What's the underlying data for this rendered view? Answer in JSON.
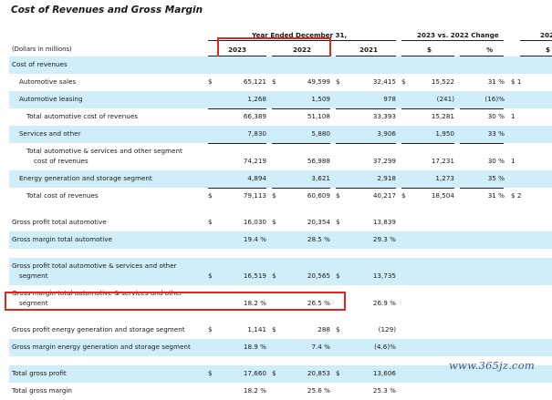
{
  "title": "Cost of Revenues and Gross Margin",
  "header": {
    "period_label": "Year Ended December 31,",
    "change_label": "2023 vs. 2022 Change",
    "change_label_next": "202",
    "units_label": "(Dollars in millions)",
    "col_2023": "2023",
    "col_2022": "2022",
    "col_2021": "2021",
    "col_dollar": "$",
    "col_pct": "%",
    "col_next": "$"
  },
  "rows": [
    {
      "label": "Cost of revenues",
      "lines": 1,
      "shade": true,
      "topline": false,
      "values": [
        "",
        "",
        "",
        "",
        ""
      ],
      "dollar": [
        "",
        "",
        "",
        "",
        ""
      ],
      "next": ""
    },
    {
      "label": "Automotive sales",
      "indent": 1,
      "lines": 1,
      "shade": false,
      "topline": false,
      "values": [
        "65,121",
        "49,599",
        "32,415",
        "15,522",
        "31 %"
      ],
      "dollar": [
        "$",
        "$",
        "$",
        "$",
        ""
      ],
      "next": "$   1"
    },
    {
      "label": "Automotive leasing",
      "indent": 1,
      "lines": 1,
      "shade": true,
      "topline": false,
      "values": [
        "1,268",
        "1,509",
        "978",
        "(241)",
        "(16)%"
      ],
      "dollar": [
        "",
        "",
        "",
        "",
        ""
      ],
      "next": ""
    },
    {
      "label": "Total automotive cost of revenues",
      "indent": 2,
      "lines": 1,
      "shade": false,
      "topline": true,
      "values": [
        "66,389",
        "51,108",
        "33,393",
        "15,281",
        "30 %"
      ],
      "dollar": [
        "",
        "",
        "",
        "",
        ""
      ],
      "next": "1"
    },
    {
      "label": "Services and other",
      "indent": 1,
      "lines": 1,
      "shade": true,
      "topline": false,
      "values": [
        "7,830",
        "5,880",
        "3,906",
        "1,950",
        "33 %"
      ],
      "dollar": [
        "",
        "",
        "",
        "",
        ""
      ],
      "next": ""
    },
    {
      "label": "Total automotive & services and other segment",
      "label2": "cost of revenues",
      "indent": 2,
      "lines": 2,
      "shade": false,
      "topline": true,
      "values": [
        "74,219",
        "56,988",
        "37,299",
        "17,231",
        "30 %"
      ],
      "dollar": [
        "",
        "",
        "",
        "",
        ""
      ],
      "next": "1"
    },
    {
      "label": "Energy generation and storage segment",
      "indent": 1,
      "lines": 1,
      "shade": true,
      "topline": false,
      "values": [
        "4,894",
        "3,621",
        "2,918",
        "1,273",
        "35 %"
      ],
      "dollar": [
        "",
        "",
        "",
        "",
        ""
      ],
      "next": ""
    },
    {
      "label": "Total cost of revenues",
      "indent": 2,
      "lines": 1,
      "shade": false,
      "topline": true,
      "values": [
        "79,113",
        "60,609",
        "40,217",
        "18,504",
        "31 %"
      ],
      "dollar": [
        "$",
        "$",
        "$",
        "$",
        ""
      ],
      "next": "$   2"
    },
    {
      "gap": true
    },
    {
      "label": "Gross profit total automotive",
      "lines": 1,
      "shade": false,
      "topline": false,
      "values": [
        "16,030",
        "20,354",
        "13,839",
        "",
        ""
      ],
      "dollar": [
        "$",
        "$",
        "$",
        "",
        ""
      ],
      "next": ""
    },
    {
      "label": "Gross margin total automotive",
      "lines": 1,
      "shade": true,
      "topline": false,
      "values": [
        "19.4 %",
        "28.5 %",
        "29.3 %",
        "",
        ""
      ],
      "dollar": [
        "",
        "",
        "",
        "",
        ""
      ],
      "next": ""
    },
    {
      "gap": true
    },
    {
      "label": "Gross profit total automotive & services and other",
      "label2": "segment",
      "lines": 2,
      "shade": true,
      "topline": false,
      "values": [
        "16,519",
        "20,565",
        "13,735",
        "",
        ""
      ],
      "dollar": [
        "$",
        "$",
        "$",
        "",
        ""
      ],
      "next": ""
    },
    {
      "label": "Gross margin total automotive & services and other",
      "label2": "segment",
      "lines": 2,
      "shade": false,
      "topline": false,
      "values": [
        "18.2 %",
        "26.5 %",
        "26.9 %",
        "",
        ""
      ],
      "dollar": [
        "",
        "",
        "",
        "",
        ""
      ],
      "next": ""
    },
    {
      "gap": true
    },
    {
      "label": "Gross profit energy generation and storage segment",
      "lines": 1,
      "shade": false,
      "topline": false,
      "values": [
        "1,141",
        "288",
        "(129)",
        "",
        ""
      ],
      "dollar": [
        "$",
        "$",
        "$",
        "",
        ""
      ],
      "next": ""
    },
    {
      "label": "Gross margin energy generation and storage segment",
      "lines": 1,
      "shade": true,
      "topline": false,
      "values": [
        "18.9 %",
        "7.4 %",
        "(4.6)%",
        "",
        ""
      ],
      "dollar": [
        "",
        "",
        "",
        "",
        ""
      ],
      "next": ""
    },
    {
      "gap": true
    },
    {
      "label": "Total gross profit",
      "lines": 1,
      "shade": true,
      "topline": false,
      "values": [
        "17,660",
        "20,853",
        "13,606",
        "",
        ""
      ],
      "dollar": [
        "$",
        "$",
        "$",
        "",
        ""
      ],
      "next": ""
    },
    {
      "label": "Total gross margin",
      "lines": 1,
      "shade": false,
      "topline": false,
      "values": [
        "18.2 %",
        "25.6 %",
        "25.3 %",
        "",
        ""
      ],
      "dollar": [
        "",
        "",
        "",
        "",
        ""
      ],
      "next": ""
    }
  ],
  "watermark": "www.365jz.com",
  "colors": {
    "row_shade": "#cfeefa",
    "highlight_box": "#e0281c",
    "watermark": "#3a5d86"
  }
}
